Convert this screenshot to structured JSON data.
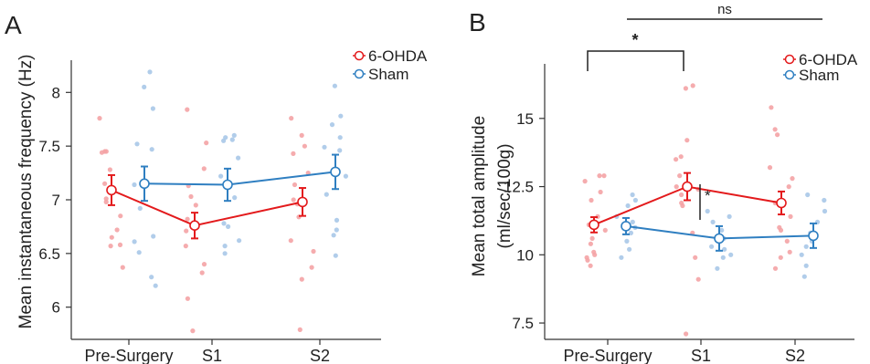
{
  "colors": {
    "ohda": "#e31a1c",
    "sham": "#2f7fc1",
    "ohda_pts": "#f4a3a5",
    "sham_pts": "#a8c8e8",
    "axis": "#333333"
  },
  "legend": [
    "6-OHDA",
    "Sham"
  ],
  "chart_data": [
    {
      "panel": "A",
      "type": "line",
      "ylabel": "Mean instantaneous frequency (Hz)",
      "xlabel": "",
      "categories": [
        "Pre-Surgery",
        "S1",
        "S2"
      ],
      "ylim": [
        5.7,
        8.3
      ],
      "yticks": [
        6,
        6.5,
        7,
        7.5,
        8
      ],
      "ytick_labels": [
        "6",
        "6.5",
        "7",
        "7.5",
        "8"
      ],
      "grid": false,
      "legend_position": "top-right",
      "series": [
        {
          "name": "6-OHDA",
          "mean": [
            7.09,
            6.76,
            6.98
          ],
          "err": [
            0.14,
            0.12,
            0.13
          ],
          "points": [
            [
              7.76,
              7.45,
              7.44,
              7.45,
              7.28,
              7.15,
              7.01,
              6.98,
              6.85,
              6.72,
              6.65,
              6.58,
              6.57,
              6.37
            ],
            [
              7.84,
              7.53,
              7.29,
              7.13,
              7.03,
              6.95,
              6.82,
              6.75,
              6.71,
              6.57,
              6.4,
              6.32,
              6.08,
              5.78
            ],
            [
              7.76,
              7.6,
              7.5,
              7.43,
              7.25,
              7.14,
              7.0,
              6.96,
              6.84,
              6.62,
              6.52,
              6.37,
              6.26,
              5.79
            ]
          ]
        },
        {
          "name": "Sham",
          "mean": [
            7.15,
            7.14,
            7.26
          ],
          "err": [
            0.16,
            0.15,
            0.16
          ],
          "points": [
            [
              8.19,
              8.05,
              7.85,
              7.52,
              7.47,
              7.14,
              6.92,
              6.66,
              6.61,
              6.51,
              6.28,
              6.2
            ],
            [
              7.6,
              7.58,
              7.56,
              7.55,
              7.39,
              7.22,
              7.02,
              6.78,
              6.75,
              6.62,
              6.57,
              6.5
            ],
            [
              8.06,
              7.78,
              7.7,
              7.58,
              7.49,
              7.46,
              7.22,
              7.05,
              6.81,
              6.72,
              6.67,
              6.48
            ]
          ]
        }
      ]
    },
    {
      "panel": "B",
      "type": "line",
      "ylabel": "Mean total amplitude (ml/sec/100g)",
      "xlabel": "",
      "categories": [
        "Pre-Surgery",
        "S1",
        "S2"
      ],
      "ylim": [
        6.9,
        17.0
      ],
      "yticks": [
        7.5,
        10,
        12.5,
        15
      ],
      "ytick_labels": [
        "7.5",
        "10",
        "12.5",
        "15"
      ],
      "grid": false,
      "legend_position": "top-right",
      "series": [
        {
          "name": "6-OHDA",
          "mean": [
            11.1,
            12.5,
            11.9
          ],
          "err": [
            0.28,
            0.5,
            0.42
          ],
          "points": [
            [
              12.9,
              12.9,
              12.7,
              12.3,
              12.0,
              11.4,
              11.1,
              10.9,
              10.6,
              10.4,
              10.1,
              10.0,
              9.9,
              9.8,
              9.6
            ],
            [
              16.2,
              16.1,
              14.2,
              13.6,
              13.5,
              12.9,
              12.5,
              12.4,
              12.2,
              11.9,
              11.8,
              10.8,
              9.9,
              9.1,
              7.1
            ],
            [
              15.4,
              14.6,
              14.4,
              13.2,
              12.8,
              12.5,
              11.9,
              11.4,
              11.0,
              10.9,
              10.5,
              10.1,
              9.9,
              9.5
            ]
          ]
        },
        {
          "name": "Sham",
          "mean": [
            11.05,
            10.6,
            10.7
          ],
          "err": [
            0.3,
            0.45,
            0.45
          ],
          "points": [
            [
              12.2,
              12.0,
              11.8,
              11.4,
              11.2,
              11.0,
              10.8,
              10.5,
              10.2,
              9.9
            ],
            [
              11.6,
              11.4,
              11.2,
              10.9,
              10.6,
              10.3,
              10.2,
              10.0,
              9.9,
              9.5
            ],
            [
              12.2,
              12.0,
              11.6,
              11.2,
              10.8,
              10.5,
              10.3,
              10.0,
              9.6,
              9.2
            ]
          ]
        }
      ],
      "annotations": {
        "bracket_star": "*",
        "inner_star": "*",
        "ns_label": "ns"
      }
    }
  ]
}
